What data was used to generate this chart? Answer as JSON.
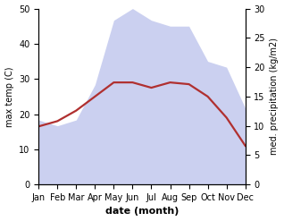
{
  "months": [
    "Jan",
    "Feb",
    "Mar",
    "Apr",
    "May",
    "Jun",
    "Jul",
    "Aug",
    "Sep",
    "Oct",
    "Nov",
    "Dec"
  ],
  "temp_max": [
    16.5,
    18.0,
    21.0,
    25.0,
    29.0,
    29.0,
    27.5,
    29.0,
    28.5,
    25.0,
    19.0,
    11.0
  ],
  "precipitation": [
    11,
    10,
    11,
    17,
    28,
    30,
    28,
    27,
    27,
    21,
    20,
    13
  ],
  "temp_ylim": [
    0,
    50
  ],
  "temp_yticks": [
    0,
    10,
    20,
    30,
    40,
    50
  ],
  "precip_ylim": [
    0,
    30
  ],
  "precip_yticks": [
    0,
    5,
    10,
    15,
    20,
    25,
    30
  ],
  "precip_scale": 1.8333,
  "fill_color": "#b0b8e8",
  "fill_alpha": 0.65,
  "line_color": "#b03030",
  "line_width": 1.6,
  "ylabel_left": "max temp (C)",
  "ylabel_right": "med. precipitation (kg/m2)",
  "xlabel": "date (month)",
  "bg_color": "#ffffff",
  "tick_fontsize": 7,
  "label_fontsize": 7,
  "xlabel_fontsize": 8
}
